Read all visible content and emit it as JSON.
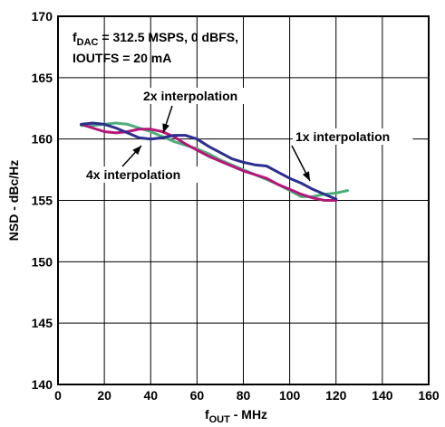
{
  "chart_data": {
    "type": "line",
    "title": "",
    "xlabel": {
      "main": "f",
      "sub": "OUT",
      "rest": " - MHz"
    },
    "ylabel": "NSD - dBc/Hz",
    "xlim": [
      0,
      160
    ],
    "ylim": [
      140,
      170
    ],
    "xticks": [
      0,
      20,
      40,
      60,
      80,
      100,
      120,
      140,
      160
    ],
    "yticks": [
      140,
      145,
      150,
      155,
      160,
      165,
      170
    ],
    "grid": true,
    "annotation": {
      "line1": {
        "pre": "f",
        "sub": "DAC",
        "post": " = 312.5 MSPS, 0 dBFS,"
      },
      "line2": "IOUTFS = 20 mA"
    },
    "series": [
      {
        "name": "1x interpolation",
        "color": "#2b2f8f",
        "x": [
          10,
          15,
          20,
          25,
          30,
          35,
          40,
          45,
          50,
          55,
          60,
          65,
          70,
          75,
          80,
          85,
          90,
          95,
          100,
          105,
          110,
          115,
          120
        ],
        "y": [
          161.2,
          161.3,
          161.2,
          160.9,
          160.5,
          160.1,
          160.0,
          160.1,
          160.3,
          160.3,
          160.0,
          159.4,
          158.9,
          158.4,
          158.1,
          157.9,
          157.8,
          157.3,
          156.8,
          156.4,
          155.9,
          155.5,
          155.1
        ]
      },
      {
        "name": "2x interpolation",
        "color": "#4caf7a",
        "x": [
          10,
          15,
          20,
          25,
          30,
          35,
          40,
          45,
          50,
          55,
          60,
          65,
          70,
          75,
          80,
          85,
          90,
          95,
          100,
          105,
          110,
          115,
          120,
          125
        ],
        "y": [
          161.1,
          161.1,
          161.2,
          161.3,
          161.2,
          160.9,
          160.6,
          160.2,
          159.8,
          159.5,
          159.2,
          158.8,
          158.3,
          157.9,
          157.5,
          157.1,
          156.7,
          156.3,
          155.8,
          155.3,
          155.3,
          155.5,
          155.6,
          155.8
        ]
      },
      {
        "name": "4x interpolation",
        "color": "#b5167a",
        "x": [
          10,
          15,
          20,
          25,
          30,
          35,
          40,
          45,
          50,
          55,
          60,
          65,
          70,
          75,
          80,
          85,
          90,
          95,
          100,
          105,
          110,
          115,
          120
        ],
        "y": [
          161.2,
          160.9,
          160.6,
          160.5,
          160.6,
          160.8,
          160.8,
          160.6,
          160.2,
          159.6,
          159.1,
          158.6,
          158.2,
          157.8,
          157.4,
          157.1,
          156.8,
          156.3,
          155.9,
          155.5,
          155.2,
          155.0,
          155.0
        ]
      }
    ],
    "labels": [
      {
        "text": "2x interpolation",
        "series": 1
      },
      {
        "text": "1x interpolation",
        "series": 0
      },
      {
        "text": "4x interpolation",
        "series": 2
      }
    ]
  }
}
